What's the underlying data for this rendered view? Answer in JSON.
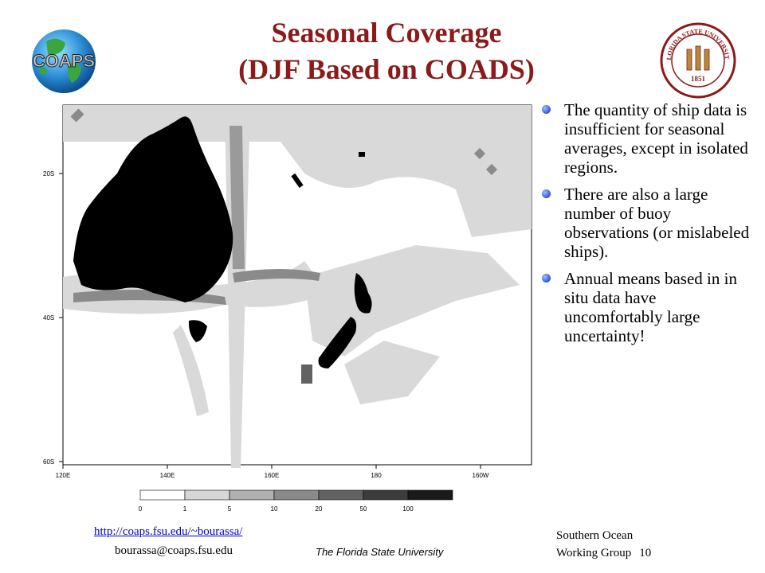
{
  "title": {
    "line1": "Seasonal Coverage",
    "line2": "(DJF Based on COADS)"
  },
  "logos": {
    "coaps_text": "COAPS",
    "seal_text_top": "FLORIDA STATE UNIVERSITY",
    "seal_year": "1851"
  },
  "map": {
    "y_ticks": [
      "20S",
      "40S",
      "60S"
    ],
    "x_ticks": [
      "120E",
      "140E",
      "160E",
      "180",
      "160W"
    ]
  },
  "legend": {
    "labels": [
      "0",
      "1",
      "5",
      "10",
      "20",
      "50",
      "100"
    ],
    "colors": [
      "#ffffff",
      "#d7d7d7",
      "#b0b0b0",
      "#8a8a8a",
      "#626262",
      "#3c3c3c",
      "#1a1a1a"
    ]
  },
  "bullets": [
    "The quantity of ship data is insufficient for seasonal averages, except in isolated regions.",
    "There are also a large number of buoy observations (or mislabeled ships).",
    "Annual means based in in situ data have uncomfortably large uncertainty!"
  ],
  "footer": {
    "link": "http://coaps.fsu.edu/~bourassa/",
    "email": "bourassa@coaps.fsu.edu",
    "university": "The Florida State University",
    "group_line1": "Southern Ocean",
    "group_line2": "Working Group",
    "page_number": "10"
  }
}
